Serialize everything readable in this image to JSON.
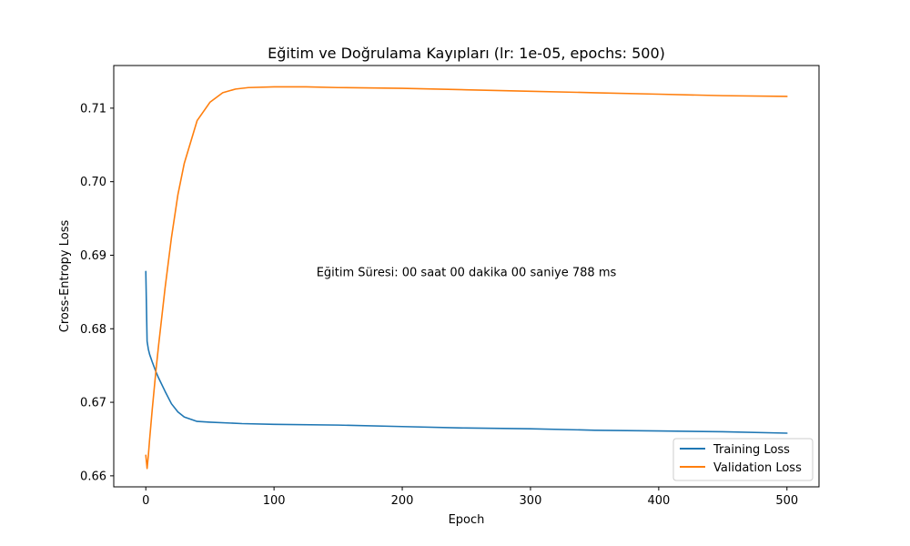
{
  "chart_data": {
    "type": "line",
    "title": "Eğitim ve Doğrulama Kayıpları (lr: 1e-05, epochs: 500)",
    "xlabel": "Epoch",
    "ylabel": "Cross-Entropy Loss",
    "xlim": [
      -25,
      525
    ],
    "ylim": [
      0.6585,
      0.7158
    ],
    "xticks": [
      0,
      100,
      200,
      300,
      400,
      500
    ],
    "xtick_labels": [
      "0",
      "100",
      "200",
      "300",
      "400",
      "500"
    ],
    "yticks": [
      0.66,
      0.67,
      0.68,
      0.69,
      0.7,
      0.71
    ],
    "ytick_labels": [
      "0.66",
      "0.67",
      "0.68",
      "0.69",
      "0.70",
      "0.71"
    ],
    "annotation": {
      "text": "Eğitim Süresi: 00 saat 00 dakika 00 saniye 788 ms",
      "x": 250,
      "y": 0.6877
    },
    "legend_position": "lower-right",
    "grid": false,
    "series": [
      {
        "name": "Training Loss",
        "color": "#1f77b4",
        "x": [
          0,
          1,
          2,
          3,
          5,
          8,
          10,
          15,
          20,
          25,
          30,
          40,
          50,
          75,
          100,
          150,
          200,
          250,
          300,
          350,
          400,
          450,
          500
        ],
        "y": [
          0.6878,
          0.6783,
          0.6772,
          0.6765,
          0.6755,
          0.6741,
          0.6733,
          0.6715,
          0.6698,
          0.6687,
          0.668,
          0.6674,
          0.6673,
          0.6671,
          0.667,
          0.6669,
          0.6667,
          0.6665,
          0.6664,
          0.6662,
          0.6661,
          0.666,
          0.6658
        ]
      },
      {
        "name": "Validation Loss",
        "color": "#ff7f0e",
        "x": [
          0,
          1,
          2,
          3,
          5,
          8,
          10,
          15,
          20,
          25,
          30,
          40,
          50,
          60,
          70,
          80,
          100,
          125,
          150,
          200,
          250,
          300,
          350,
          400,
          450,
          500
        ],
        "y": [
          0.6628,
          0.661,
          0.6628,
          0.665,
          0.669,
          0.6745,
          0.6778,
          0.6855,
          0.6924,
          0.6982,
          0.7025,
          0.7083,
          0.7108,
          0.7121,
          0.7126,
          0.7128,
          0.7129,
          0.7129,
          0.7128,
          0.7127,
          0.7125,
          0.7123,
          0.7121,
          0.7119,
          0.7117,
          0.7116
        ]
      }
    ]
  }
}
